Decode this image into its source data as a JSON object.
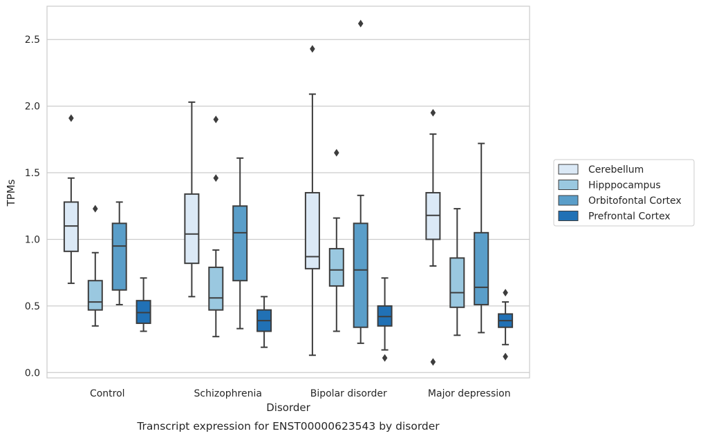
{
  "chart_data": {
    "type": "box",
    "caption": "Transcript expression for ENST00000623543 by disorder",
    "xlabel": "Disorder",
    "ylabel": "TPMs",
    "ylim": [
      -0.04,
      2.75
    ],
    "yticks": [
      0.0,
      0.5,
      1.0,
      1.5,
      2.0,
      2.5
    ],
    "ytick_labels": [
      "0.0",
      "0.5",
      "1.0",
      "1.5",
      "2.0",
      "2.5"
    ],
    "grid": "horizontal",
    "legend_position": "right",
    "categories": [
      "Control",
      "Schizophrenia",
      "Bipolar disorder",
      "Major depression"
    ],
    "series": [
      {
        "name": "Cerebellum",
        "color": "#dbe9f6",
        "boxes": [
          {
            "whislo": 0.67,
            "q1": 0.91,
            "med": 1.1,
            "q3": 1.28,
            "whishi": 1.46,
            "fliers": [
              1.91
            ]
          },
          {
            "whislo": 0.57,
            "q1": 0.82,
            "med": 1.04,
            "q3": 1.34,
            "whishi": 2.03,
            "fliers": []
          },
          {
            "whislo": 0.13,
            "q1": 0.78,
            "med": 0.87,
            "q3": 1.35,
            "whishi": 2.09,
            "fliers": [
              2.43
            ]
          },
          {
            "whislo": 0.8,
            "q1": 1.0,
            "med": 1.18,
            "q3": 1.35,
            "whishi": 1.79,
            "fliers": [
              1.95,
              0.08
            ]
          }
        ]
      },
      {
        "name": "Hipppocampus",
        "color": "#9ac8e0",
        "boxes": [
          {
            "whislo": 0.35,
            "q1": 0.47,
            "med": 0.53,
            "q3": 0.69,
            "whishi": 0.9,
            "fliers": [
              1.23
            ]
          },
          {
            "whislo": 0.27,
            "q1": 0.47,
            "med": 0.56,
            "q3": 0.79,
            "whishi": 0.92,
            "fliers": [
              1.9,
              1.46
            ]
          },
          {
            "whislo": 0.31,
            "q1": 0.65,
            "med": 0.77,
            "q3": 0.93,
            "whishi": 1.16,
            "fliers": [
              1.65
            ]
          },
          {
            "whislo": 0.28,
            "q1": 0.49,
            "med": 0.6,
            "q3": 0.86,
            "whishi": 1.23,
            "fliers": []
          }
        ]
      },
      {
        "name": "Orbitofontal Cortex",
        "color": "#5a9ec9",
        "boxes": [
          {
            "whislo": 0.51,
            "q1": 0.62,
            "med": 0.95,
            "q3": 1.12,
            "whishi": 1.28,
            "fliers": []
          },
          {
            "whislo": 0.33,
            "q1": 0.69,
            "med": 1.05,
            "q3": 1.25,
            "whishi": 1.61,
            "fliers": []
          },
          {
            "whislo": 0.22,
            "q1": 0.34,
            "med": 0.77,
            "q3": 1.12,
            "whishi": 1.33,
            "fliers": [
              2.62
            ]
          },
          {
            "whislo": 0.3,
            "q1": 0.51,
            "med": 0.64,
            "q3": 1.05,
            "whishi": 1.72,
            "fliers": []
          }
        ]
      },
      {
        "name": "Prefrontal Cortex",
        "color": "#2171b5",
        "boxes": [
          {
            "whislo": 0.31,
            "q1": 0.37,
            "med": 0.45,
            "q3": 0.54,
            "whishi": 0.71,
            "fliers": []
          },
          {
            "whislo": 0.19,
            "q1": 0.31,
            "med": 0.39,
            "q3": 0.47,
            "whishi": 0.57,
            "fliers": []
          },
          {
            "whislo": 0.17,
            "q1": 0.35,
            "med": 0.42,
            "q3": 0.5,
            "whishi": 0.71,
            "fliers": [
              0.11
            ]
          },
          {
            "whislo": 0.21,
            "q1": 0.34,
            "med": 0.39,
            "q3": 0.44,
            "whishi": 0.53,
            "fliers": [
              0.6,
              0.12
            ]
          }
        ]
      }
    ]
  }
}
